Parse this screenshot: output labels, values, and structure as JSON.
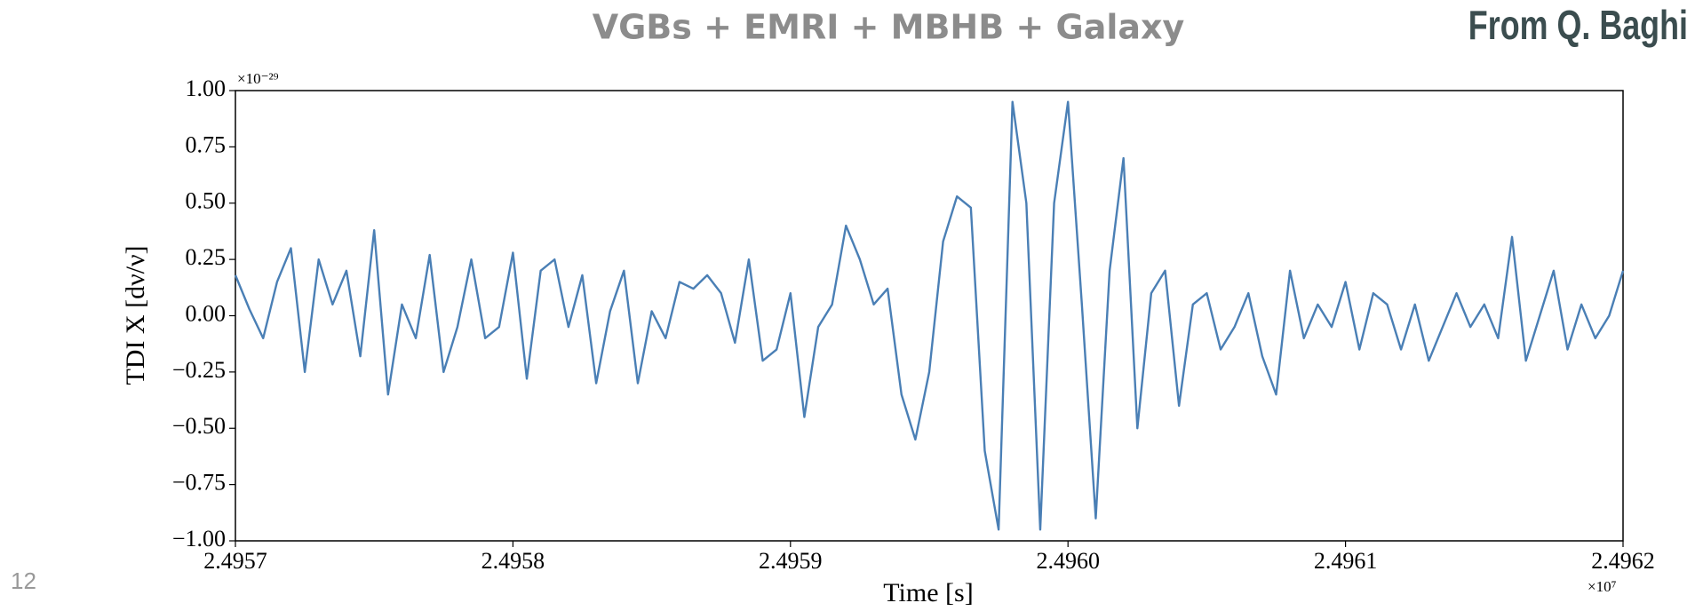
{
  "chart_data": {
    "type": "line",
    "title": "VGBs + EMRI + MBHB + Galaxy",
    "credit": "From Q. Baghi",
    "page_number": "12",
    "xlabel": "Time [s]",
    "ylabel": "TDI X [dν/ν]",
    "x_offset_label": "×10⁷",
    "y_offset_label": "×10⁻²⁹",
    "color": "#4a7fb5",
    "x": [
      2.4957,
      2.495705,
      2.49571,
      2.495715,
      2.49572,
      2.495725,
      2.49573,
      2.495735,
      2.49574,
      2.495745,
      2.49575,
      2.495755,
      2.49576,
      2.495765,
      2.49577,
      2.495775,
      2.49578,
      2.495785,
      2.49579,
      2.495795,
      2.4958,
      2.495805,
      2.49581,
      2.495815,
      2.49582,
      2.495825,
      2.49583,
      2.495835,
      2.49584,
      2.495845,
      2.49585,
      2.495855,
      2.49586,
      2.495865,
      2.49587,
      2.495875,
      2.49588,
      2.495885,
      2.49589,
      2.495895,
      2.4959,
      2.495905,
      2.49591,
      2.495915,
      2.49592,
      2.495925,
      2.49593,
      2.495935,
      2.49594,
      2.495945,
      2.49595,
      2.495955,
      2.49596,
      2.495965,
      2.49597,
      2.495975,
      2.49598,
      2.495985,
      2.49599,
      2.495995,
      2.496,
      2.496005,
      2.49601,
      2.496015,
      2.49602,
      2.496025,
      2.49603,
      2.496035,
      2.49604,
      2.496045,
      2.49605,
      2.496055,
      2.49606,
      2.496065,
      2.49607,
      2.496075,
      2.49608,
      2.496085,
      2.49609,
      2.496095,
      2.4961,
      2.496105,
      2.49611,
      2.496115,
      2.49612,
      2.496125,
      2.49613,
      2.496135,
      2.49614,
      2.496145,
      2.49615,
      2.496155,
      2.49616,
      2.496165,
      2.49617,
      2.496175,
      2.49618,
      2.496185,
      2.49619,
      2.496195,
      2.4962
    ],
    "values": [
      0.18,
      0.03,
      -0.1,
      0.15,
      0.3,
      -0.25,
      0.25,
      0.05,
      0.2,
      -0.18,
      0.38,
      -0.35,
      0.05,
      -0.1,
      0.27,
      -0.25,
      -0.05,
      0.25,
      -0.1,
      -0.05,
      0.28,
      -0.28,
      0.2,
      0.25,
      -0.05,
      0.18,
      -0.3,
      0.02,
      0.2,
      -0.3,
      0.02,
      -0.1,
      0.15,
      0.12,
      0.18,
      0.1,
      -0.12,
      0.25,
      -0.2,
      -0.15,
      0.1,
      -0.45,
      -0.05,
      0.05,
      0.4,
      0.25,
      0.05,
      0.12,
      -0.35,
      -0.55,
      -0.25,
      0.33,
      0.53,
      0.48,
      -0.6,
      -0.95,
      0.95,
      0.5,
      -0.95,
      0.5,
      0.95,
      0.05,
      -0.9,
      0.2,
      0.7,
      -0.5,
      0.1,
      0.2,
      -0.4,
      0.05,
      0.1,
      -0.15,
      -0.05,
      0.1,
      -0.18,
      -0.35,
      0.2,
      -0.1,
      0.05,
      -0.05,
      0.15,
      -0.15,
      0.1,
      0.05,
      -0.15,
      0.05,
      -0.2,
      -0.05,
      0.1,
      -0.05,
      0.05,
      -0.1,
      0.35,
      -0.2,
      0.0,
      0.2,
      -0.15,
      0.05,
      -0.1,
      0.0,
      0.2
    ],
    "xlim": [
      2.4957,
      2.4962
    ],
    "ylim": [
      -1,
      1
    ],
    "xticks": [
      2.4957,
      2.4958,
      2.4959,
      {
        "value": 2.496,
        "label": "2.4960"
      },
      2.4961,
      2.4962
    ],
    "yticks": [
      {
        "value": -1,
        "label": "−1.00"
      },
      {
        "value": -0.75,
        "label": "−0.75"
      },
      {
        "value": -0.5,
        "label": "−0.50"
      },
      {
        "value": -0.25,
        "label": "−0.25"
      },
      {
        "value": 0,
        "label": "0.00"
      },
      {
        "value": 0.25,
        "label": "0.25"
      },
      {
        "value": 0.5,
        "label": "0.50"
      },
      {
        "value": 0.75,
        "label": "0.75"
      },
      {
        "value": 1,
        "label": "1.00"
      }
    ],
    "grid": false
  }
}
